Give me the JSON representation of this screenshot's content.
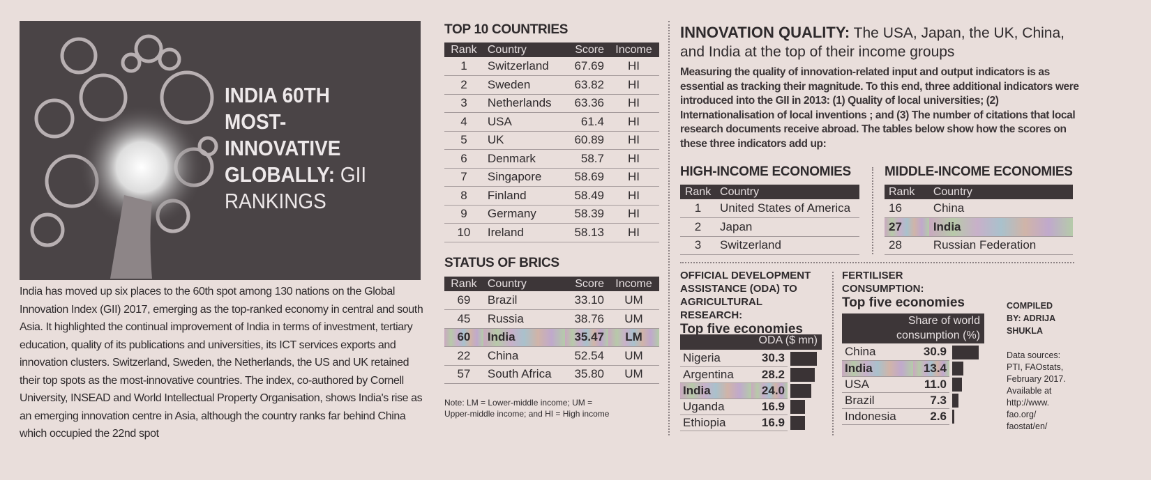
{
  "hero": {
    "title_line1": "INDIA 60TH",
    "title_line2": "MOST-INNOVATIVE",
    "title_line3_bold": "GLOBALLY:",
    "title_line3_light": "GII",
    "title_line4": "RANKINGS"
  },
  "body": "India has moved up six places to the 60th spot among 130 nations on the Global Innovation Index (GII) 2017, emerging as the top-ranked economy in central and south Asia. It highlighted the continual improvement of India in terms of investment, tertiary education, quality of its publications and universities, its ICT services exports and innovation clusters. Switzerland, Sweden, the Netherlands, the US and UK retained their top spots as the most-innovative countries. The index, co-authored by Cornell University, INSEAD and World Intellectual Property Organisation, shows India's rise as an emerging innovation centre in Asia, although the country ranks far behind China which occupied the 22nd spot",
  "top10": {
    "title": "TOP 10 COUNTRIES",
    "headers": [
      "Rank",
      "Country",
      "Score",
      "Income"
    ],
    "rows": [
      [
        "1",
        "Switzerland",
        "67.69",
        "HI"
      ],
      [
        "2",
        "Sweden",
        "63.82",
        "HI"
      ],
      [
        "3",
        "Netherlands",
        "63.36",
        "HI"
      ],
      [
        "4",
        "USA",
        "61.4",
        "HI"
      ],
      [
        "5",
        "UK",
        "60.89",
        "HI"
      ],
      [
        "6",
        "Denmark",
        "58.7",
        "HI"
      ],
      [
        "7",
        "Singapore",
        "58.69",
        "HI"
      ],
      [
        "8",
        "Finland",
        "58.49",
        "HI"
      ],
      [
        "9",
        "Germany",
        "58.39",
        "HI"
      ],
      [
        "10",
        "Ireland",
        "58.13",
        "HI"
      ]
    ]
  },
  "brics": {
    "title": "STATUS OF BRICS",
    "headers": [
      "Rank",
      "Country",
      "Score",
      "Income"
    ],
    "rows": [
      [
        "69",
        "Brazil",
        "33.10",
        "UM"
      ],
      [
        "45",
        "Russia",
        "38.76",
        "UM"
      ],
      [
        "60",
        "India",
        "35.47",
        "LM"
      ],
      [
        "22",
        "China",
        "52.54",
        "UM"
      ],
      [
        "57",
        "South Africa",
        "35.80",
        "UM"
      ]
    ],
    "highlight": 2
  },
  "note": "Note: LM = Lower-middle income; UM = Upper-middle income; and HI = High income",
  "quality": {
    "title_bold": "INNOVATION QUALITY:",
    "title_rest": "The USA, Japan, the UK, China, and India at the top of their income groups",
    "paragraph": "Measuring the quality of innovation-related input and output indicators is as essential as tracking their magnitude. To this end, three additional indicators were introduced into the GII in 2013: (1) Quality of local universities; (2) Internationalisation of local inventions ; and (3) The number of citations that local research documents receive abroad. The tables below show how the scores on these three indicators add up:"
  },
  "high_income": {
    "title": "HIGH-INCOME ECONOMIES",
    "headers": [
      "Rank",
      "Country"
    ],
    "rows": [
      [
        "1",
        "United States of America"
      ],
      [
        "2",
        "Japan"
      ],
      [
        "3",
        "Switzerland"
      ]
    ]
  },
  "middle_income": {
    "title": "MIDDLE-INCOME ECONOMIES",
    "headers": [
      "Rank",
      "Country"
    ],
    "rows": [
      [
        "16",
        "China"
      ],
      [
        "27",
        "India"
      ],
      [
        "28",
        "Russian Federation"
      ]
    ],
    "highlight": 1
  },
  "oda": {
    "title": "OFFICIAL DEVELOPMENT ASSISTANCE (ODA) TO AGRICULTURAL RESEARCH:",
    "subtitle": "Top five economies",
    "header": "ODA ($ mn)",
    "rows": [
      [
        "Nigeria",
        30.3
      ],
      [
        "Argentina",
        28.2
      ],
      [
        "India",
        24.0
      ],
      [
        "Uganda",
        16.9
      ],
      [
        "Ethiopia",
        16.9
      ]
    ],
    "highlight": 2
  },
  "fert": {
    "title": "FERTILISER CONSUMPTION:",
    "subtitle": "Top five economies",
    "header": "Share of world consumption (%)",
    "rows": [
      [
        "China",
        30.9
      ],
      [
        "India",
        13.4
      ],
      [
        "USA",
        11.0
      ],
      [
        "Brazil",
        7.3
      ],
      [
        "Indonesia",
        2.6
      ]
    ],
    "highlight": 1
  },
  "credit": {
    "label": "COMPILED BY: ADRIJA SHUKLA",
    "sources": "Data sources: PTI, FAOstats, February 2017. Available at http://www. fao.org/ faostat/en/"
  },
  "colors": {
    "paper": "#e9dedb",
    "header": "#3d3638",
    "bar": "#3a3335"
  }
}
